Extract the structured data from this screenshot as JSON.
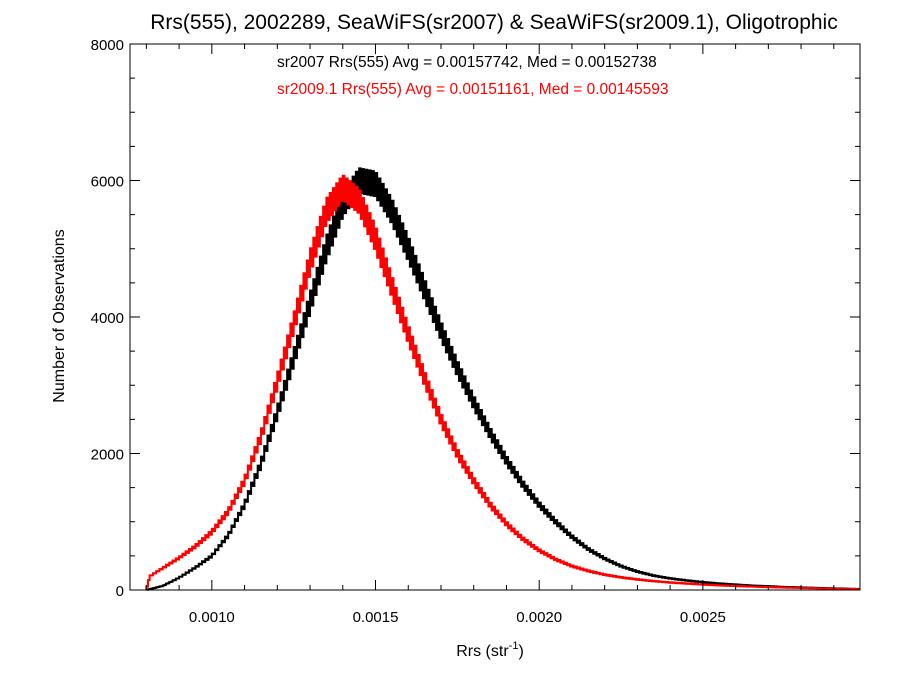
{
  "chart_data": {
    "type": "step-histogram",
    "title": "Rrs(555), 2002289, SeaWiFS(sr2007) & SeaWiFS(sr2009.1), Oligotrophic",
    "xlabel_base": "Rrs (str",
    "xlabel_sup": "-1",
    "xlabel_close": ")",
    "ylabel": "Number of Observations",
    "xlim": [
      0.00075,
      0.00298
    ],
    "ylim": [
      0,
      8000
    ],
    "x_ticks": [
      {
        "value": 0.001,
        "label": "0.0010"
      },
      {
        "value": 0.0015,
        "label": "0.0015"
      },
      {
        "value": 0.002,
        "label": "0.0020"
      },
      {
        "value": 0.0025,
        "label": "0.0025"
      }
    ],
    "y_ticks": [
      {
        "value": 0,
        "label": "0"
      },
      {
        "value": 2000,
        "label": "2000"
      },
      {
        "value": 4000,
        "label": "4000"
      },
      {
        "value": 6000,
        "label": "6000"
      },
      {
        "value": 8000,
        "label": "8000"
      }
    ],
    "annotations": [
      {
        "text": "sr2007 Rrs(555) Avg = 0.00157742, Med = 0.00152738",
        "color": "#000000"
      },
      {
        "text": "sr2009.1 Rrs(555) Avg = 0.00151161, Med = 0.00145593",
        "color": "#ff0000"
      }
    ],
    "series": [
      {
        "name": "sr2007",
        "color": "#000000",
        "points": [
          [
            0.0008,
            0
          ],
          [
            0.00085,
            60
          ],
          [
            0.0009,
            180
          ],
          [
            0.00095,
            330
          ],
          [
            0.001,
            500
          ],
          [
            0.00105,
            800
          ],
          [
            0.0011,
            1250
          ],
          [
            0.00115,
            1850
          ],
          [
            0.0012,
            2600
          ],
          [
            0.00125,
            3400
          ],
          [
            0.0013,
            4200
          ],
          [
            0.00135,
            5000
          ],
          [
            0.0014,
            5650
          ],
          [
            0.00145,
            6000
          ],
          [
            0.0015,
            5950
          ],
          [
            0.00155,
            5550
          ],
          [
            0.0016,
            5000
          ],
          [
            0.00165,
            4400
          ],
          [
            0.0017,
            3800
          ],
          [
            0.00175,
            3250
          ],
          [
            0.0018,
            2750
          ],
          [
            0.00185,
            2300
          ],
          [
            0.0019,
            1900
          ],
          [
            0.00195,
            1550
          ],
          [
            0.002,
            1250
          ],
          [
            0.00205,
            1000
          ],
          [
            0.0021,
            780
          ],
          [
            0.00215,
            600
          ],
          [
            0.0022,
            460
          ],
          [
            0.00225,
            350
          ],
          [
            0.0023,
            270
          ],
          [
            0.00235,
            210
          ],
          [
            0.0024,
            170
          ],
          [
            0.00245,
            140
          ],
          [
            0.0025,
            115
          ],
          [
            0.00255,
            95
          ],
          [
            0.0026,
            80
          ],
          [
            0.00265,
            65
          ],
          [
            0.0027,
            55
          ],
          [
            0.00275,
            45
          ],
          [
            0.0028,
            38
          ],
          [
            0.00285,
            30
          ],
          [
            0.0029,
            25
          ],
          [
            0.00298,
            15
          ]
        ]
      },
      {
        "name": "sr2009.1",
        "color": "#ff0000",
        "points": [
          [
            0.0008,
            0
          ],
          [
            0.00081,
            200
          ],
          [
            0.00085,
            320
          ],
          [
            0.0009,
            470
          ],
          [
            0.00095,
            640
          ],
          [
            0.001,
            850
          ],
          [
            0.00105,
            1150
          ],
          [
            0.0011,
            1600
          ],
          [
            0.00115,
            2250
          ],
          [
            0.0012,
            3050
          ],
          [
            0.00125,
            3900
          ],
          [
            0.0013,
            4800
          ],
          [
            0.00135,
            5550
          ],
          [
            0.0014,
            5900
          ],
          [
            0.00145,
            5700
          ],
          [
            0.0015,
            5150
          ],
          [
            0.00155,
            4450
          ],
          [
            0.0016,
            3750
          ],
          [
            0.00165,
            3100
          ],
          [
            0.0017,
            2500
          ],
          [
            0.00175,
            2000
          ],
          [
            0.0018,
            1600
          ],
          [
            0.00185,
            1250
          ],
          [
            0.0019,
            970
          ],
          [
            0.00195,
            750
          ],
          [
            0.002,
            580
          ],
          [
            0.00205,
            450
          ],
          [
            0.0021,
            350
          ],
          [
            0.00215,
            280
          ],
          [
            0.0022,
            225
          ],
          [
            0.00225,
            185
          ],
          [
            0.0023,
            155
          ],
          [
            0.00235,
            130
          ],
          [
            0.0024,
            110
          ],
          [
            0.00245,
            95
          ],
          [
            0.0025,
            80
          ],
          [
            0.00255,
            68
          ],
          [
            0.0026,
            58
          ],
          [
            0.00265,
            50
          ],
          [
            0.0027,
            42
          ],
          [
            0.00275,
            36
          ],
          [
            0.0028,
            30
          ],
          [
            0.00285,
            25
          ],
          [
            0.0029,
            20
          ],
          [
            0.00298,
            12
          ]
        ]
      }
    ]
  }
}
